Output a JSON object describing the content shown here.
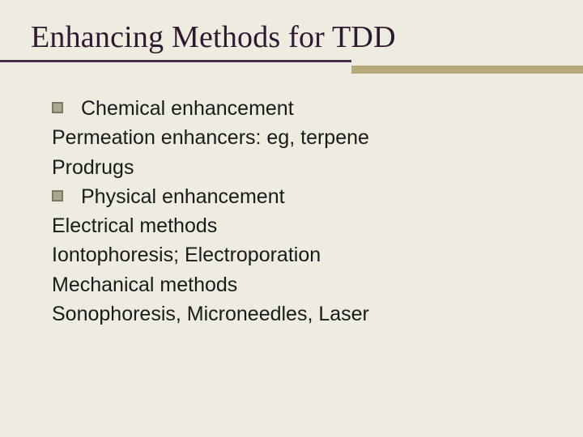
{
  "slide": {
    "background_color": "#eeece0",
    "title": {
      "text": "Enhancing Methods for TDD",
      "font_family": "Times New Roman",
      "font_size_pt": 38,
      "color": "#2e1a2e"
    },
    "divider": {
      "long_color": "#4a2a4a",
      "short_color": "#b6a97a"
    },
    "body": {
      "font_family": "Arial",
      "font_size_pt": 25,
      "text_color": "#1a1a1a",
      "bullet_border_color": "#7a7a66",
      "bullet_fill_color": "#a9a990",
      "lines": [
        {
          "bullet": true,
          "text": "Chemical enhancement"
        },
        {
          "bullet": false,
          "text": "Permeation enhancers: eg, terpene"
        },
        {
          "bullet": false,
          "text": "Prodrugs"
        },
        {
          "bullet": true,
          "text": "Physical enhancement"
        },
        {
          "bullet": false,
          "text": "Electrical methods"
        },
        {
          "bullet": false,
          "text": "Iontophoresis; Electroporation"
        },
        {
          "bullet": false,
          "text": "Mechanical methods"
        },
        {
          "bullet": false,
          "text": "Sonophoresis, Microneedles, Laser"
        }
      ]
    }
  }
}
